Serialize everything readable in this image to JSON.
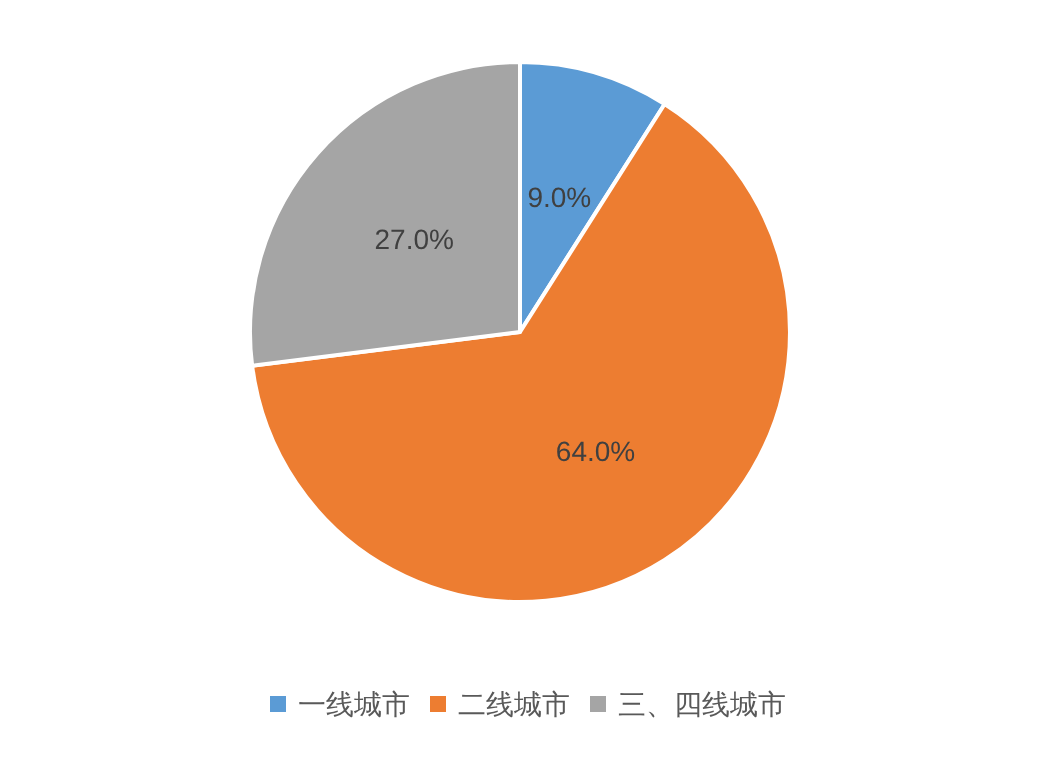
{
  "chart_data": {
    "type": "pie",
    "categories": [
      "一线城市",
      "二线城市",
      "三、四线城市"
    ],
    "values": [
      9.0,
      64.0,
      27.0
    ],
    "colors": [
      "#5b9bd5",
      "#ed7d31",
      "#a5a5a5"
    ],
    "value_labels": [
      "9.0%",
      "64.0%",
      "27.0%"
    ],
    "legend": "bottom"
  }
}
